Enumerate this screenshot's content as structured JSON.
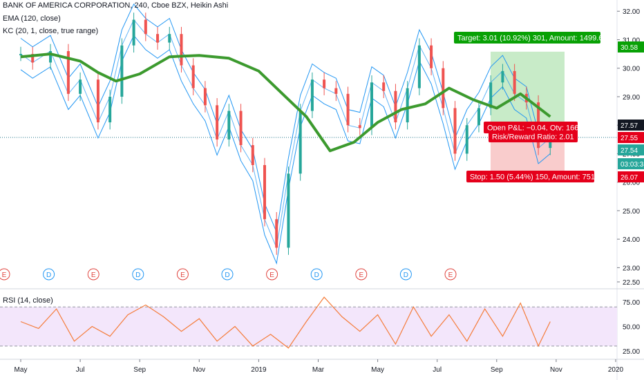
{
  "legend": {
    "title": "BANK OF AMERICA CORPORATION, 240, Cboe BZX, Heikin Ashi",
    "ema": "EMA (120, close)",
    "kc": "KC (20, 1, close, true range)",
    "rsi": "RSI (14, close)"
  },
  "colors": {
    "ema": "#3c9a2e",
    "kc": "#2196f3",
    "up": "#26a69a",
    "down": "#ef5350",
    "rsi_line": "#f57c3a",
    "rsi_band": "#f3e6fb",
    "profit": "#c8ebc8",
    "loss": "#f9cccc",
    "target_label": "#08a105",
    "stop_label": "#e5001b",
    "event_e": "#e0443e",
    "event_d": "#2196f3"
  },
  "position": {
    "target_text": "Target: 3.01 (10.92%) 301, Amount: 1499.66",
    "stop_text": "Stop: 1.50 (5.44%) 150, Amount: 751",
    "open_pl_text": "Open P&L: −0.04, Qty: 166",
    "rr_text": "Risk/Reward Ratio: 2.01",
    "entry": 27.57,
    "target": 30.58,
    "stop": 26.07
  },
  "price_badges": [
    {
      "value": "30.58",
      "color": "#08a105"
    },
    {
      "value": "27.57",
      "color": "#131722"
    },
    {
      "value": "27.55",
      "color": "#e5001b"
    },
    {
      "value": "27.54",
      "color": "#26a69a"
    },
    {
      "value": "03:03:38",
      "color": "#26a69a"
    },
    {
      "value": "26.07",
      "color": "#e5001b"
    }
  ],
  "events": [
    "E",
    "D",
    "E",
    "D",
    "E",
    "D",
    "E",
    "D",
    "E",
    "D",
    "E"
  ],
  "chart_data": {
    "type": "line",
    "price_axis": {
      "ticks": [
        "32.00",
        "31.00",
        "30.00",
        "29.00",
        "28.00",
        "27.00",
        "26.00",
        "25.00",
        "24.00",
        "23.00",
        "22.50"
      ],
      "ylim": [
        22.5,
        32.2
      ]
    },
    "rsi_axis": {
      "ticks": [
        "75.00",
        "50.00",
        "25.00"
      ],
      "ylim": [
        20,
        85
      ],
      "band": [
        30,
        70
      ]
    },
    "x_ticks": [
      "May",
      "Jul",
      "Sep",
      "Nov",
      "2019",
      "Mar",
      "May",
      "Jul",
      "Sep",
      "Nov",
      "2020"
    ],
    "series": [
      {
        "name": "EMA (120, close)",
        "x": [
          0.0,
          0.5,
          1.0,
          1.3,
          1.6,
          2.0,
          2.5,
          3.0,
          3.5,
          4.0,
          4.4,
          4.8,
          5.2,
          5.6,
          6.0,
          6.4,
          6.8,
          7.2,
          7.6,
          8.0,
          8.4,
          8.9
        ],
        "values": [
          30.4,
          30.5,
          30.25,
          29.85,
          29.55,
          29.8,
          30.4,
          30.45,
          30.35,
          29.9,
          29.1,
          28.3,
          27.1,
          27.4,
          28.1,
          28.55,
          28.75,
          29.3,
          28.9,
          28.6,
          29.1,
          28.3
        ]
      },
      {
        "name": "Price (Heikin Ashi, approx.)",
        "x": [
          0.0,
          0.2,
          0.5,
          0.8,
          1.0,
          1.3,
          1.5,
          1.7,
          1.9,
          2.1,
          2.3,
          2.5,
          2.7,
          2.9,
          3.1,
          3.3,
          3.5,
          3.7,
          3.9,
          4.1,
          4.3,
          4.5,
          4.7,
          4.9,
          5.1,
          5.3,
          5.5,
          5.7,
          5.9,
          6.1,
          6.3,
          6.5,
          6.7,
          6.9,
          7.1,
          7.3,
          7.5,
          7.7,
          7.9,
          8.1,
          8.3,
          8.5,
          8.7,
          8.9
        ],
        "values": [
          30.5,
          30.2,
          30.6,
          29.1,
          29.6,
          28.1,
          29.0,
          30.8,
          31.7,
          31.2,
          30.9,
          31.2,
          30.1,
          29.3,
          28.7,
          27.5,
          28.5,
          27.3,
          26.6,
          24.7,
          23.7,
          26.3,
          28.5,
          29.6,
          29.3,
          29.1,
          28.0,
          27.9,
          29.5,
          29.2,
          28.1,
          29.3,
          30.8,
          30.0,
          28.6,
          27.0,
          28.0,
          28.6,
          29.5,
          29.9,
          29.1,
          28.8,
          27.2,
          27.55
        ]
      },
      {
        "name": "RSI (14, close)",
        "x": [
          0.0,
          0.3,
          0.6,
          0.9,
          1.2,
          1.5,
          1.8,
          2.1,
          2.4,
          2.7,
          3.0,
          3.3,
          3.6,
          3.9,
          4.2,
          4.5,
          4.8,
          5.1,
          5.4,
          5.7,
          6.0,
          6.3,
          6.6,
          6.9,
          7.2,
          7.5,
          7.8,
          8.1,
          8.4,
          8.7,
          8.9
        ],
        "values": [
          55,
          48,
          68,
          35,
          50,
          40,
          62,
          72,
          60,
          45,
          58,
          35,
          50,
          30,
          42,
          28,
          55,
          80,
          60,
          45,
          62,
          32,
          70,
          40,
          62,
          35,
          68,
          40,
          74,
          30,
          55
        ]
      }
    ]
  }
}
